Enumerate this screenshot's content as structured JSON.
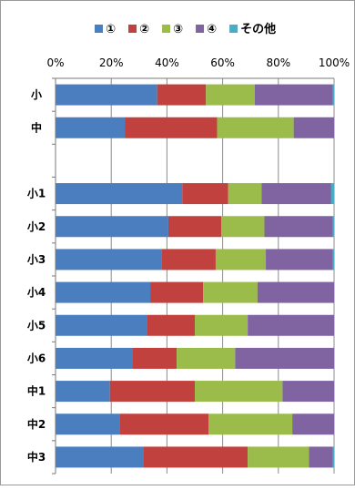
{
  "chart_data": {
    "type": "bar",
    "orientation": "horizontal",
    "stacked": true,
    "percent": true,
    "title": "",
    "xlabel": "",
    "ylabel": "",
    "xlim": [
      0,
      100
    ],
    "x_ticks": [
      "0%",
      "20%",
      "40%",
      "60%",
      "80%",
      "100%"
    ],
    "grid": true,
    "legend_position": "top",
    "categories": [
      "小",
      "中",
      "",
      "小1",
      "小2",
      "小3",
      "小4",
      "小5",
      "小6",
      "中1",
      "中2",
      "中3"
    ],
    "series": [
      {
        "name": "①",
        "color": "#4a7ebf",
        "values": [
          36.5,
          25,
          null,
          45.5,
          40.5,
          38,
          34,
          33,
          27.5,
          19.5,
          23,
          31.5
        ]
      },
      {
        "name": "②",
        "color": "#c0413e",
        "values": [
          17.5,
          33,
          null,
          16.5,
          19,
          19.5,
          19,
          17,
          16,
          30.5,
          32,
          37.5
        ]
      },
      {
        "name": "③",
        "color": "#9bbb4a",
        "values": [
          17.5,
          27.5,
          null,
          12,
          15.5,
          18,
          19.5,
          19,
          21,
          31.5,
          30,
          22
        ]
      },
      {
        "name": "④",
        "color": "#8064a2",
        "values": [
          28,
          14.5,
          null,
          25,
          24.5,
          24,
          27.5,
          31,
          35.5,
          18.5,
          15,
          8.5
        ]
      },
      {
        "name": "その他",
        "color": "#4bacc6",
        "values": [
          0.5,
          0,
          null,
          1,
          0.5,
          0.5,
          0,
          0,
          0,
          0,
          0,
          0.5
        ]
      }
    ]
  }
}
